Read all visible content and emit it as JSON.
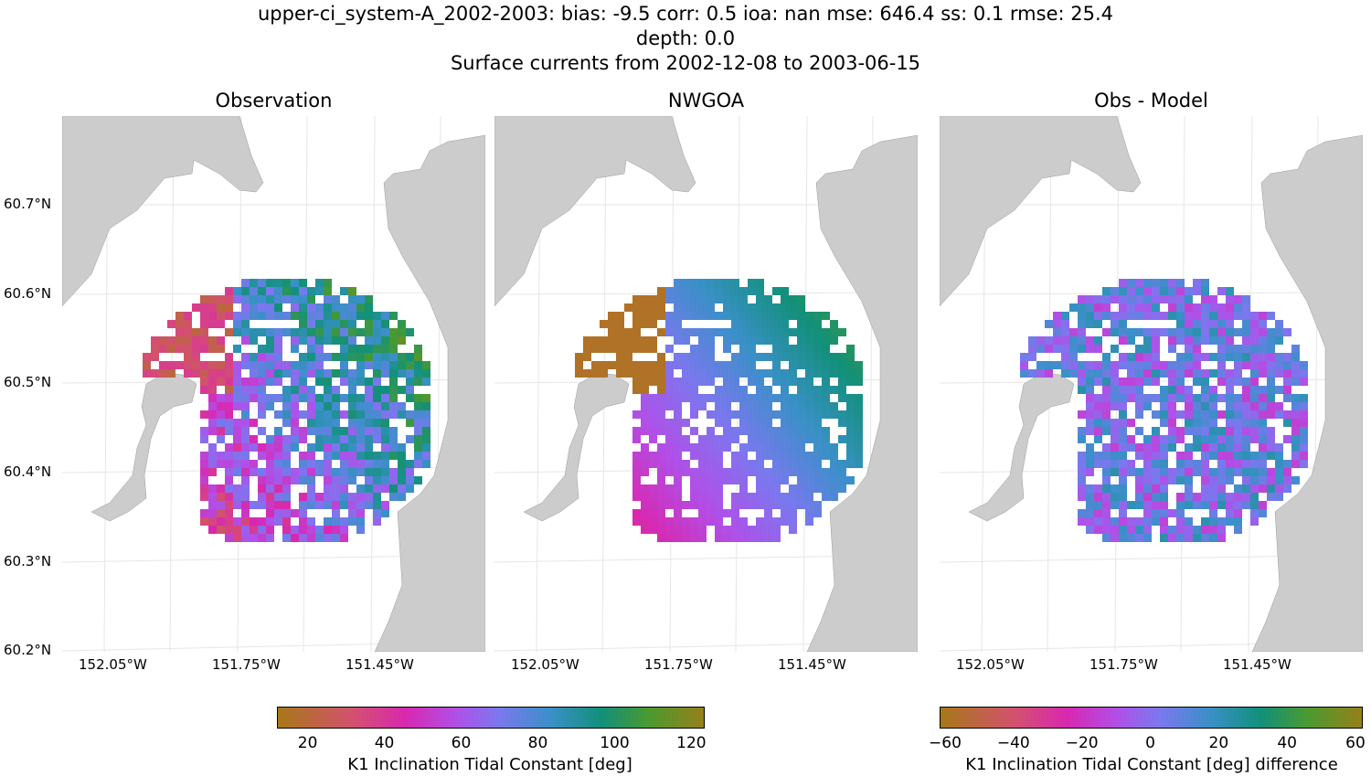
{
  "title_lines": [
    "upper-ci_system-A_2002-2003: bias: -9.5  corr: 0.5  ioa: nan  mse: 646.4  ss: 0.1  rmse: 25.4",
    "depth: 0.0",
    "Surface currents from 2002-12-08 to 2003-06-15"
  ],
  "panels": [
    {
      "title": "Observation"
    },
    {
      "title": "NWGOA"
    },
    {
      "title": "Obs - Model"
    }
  ],
  "lat_ticks": [
    "60.7°N",
    "60.6°N",
    "60.5°N",
    "60.4°N",
    "60.3°N",
    "60.2°N"
  ],
  "lon_ticks": [
    "152.05°W",
    "151.75°W",
    "151.45°W"
  ],
  "colors": {
    "land": "#cccccc",
    "grid": "#e6e6e6"
  },
  "colorbars": [
    {
      "label": "K1 Inclination Tidal Constant [deg]",
      "ticks": [
        "20",
        "40",
        "60",
        "80",
        "100",
        "120"
      ],
      "range": [
        12,
        123
      ],
      "colormap": "cyclic brown-pink-purple-blue-green-olive"
    },
    {
      "label": "K1 Inclination Tidal Constant [deg] difference",
      "ticks": [
        "−60",
        "−40",
        "−20",
        "0",
        "20",
        "40",
        "60"
      ],
      "range": [
        -61.6,
        61.6
      ],
      "colormap": "cyclic brown-pink-purple-blue-green-olive"
    }
  ]
}
